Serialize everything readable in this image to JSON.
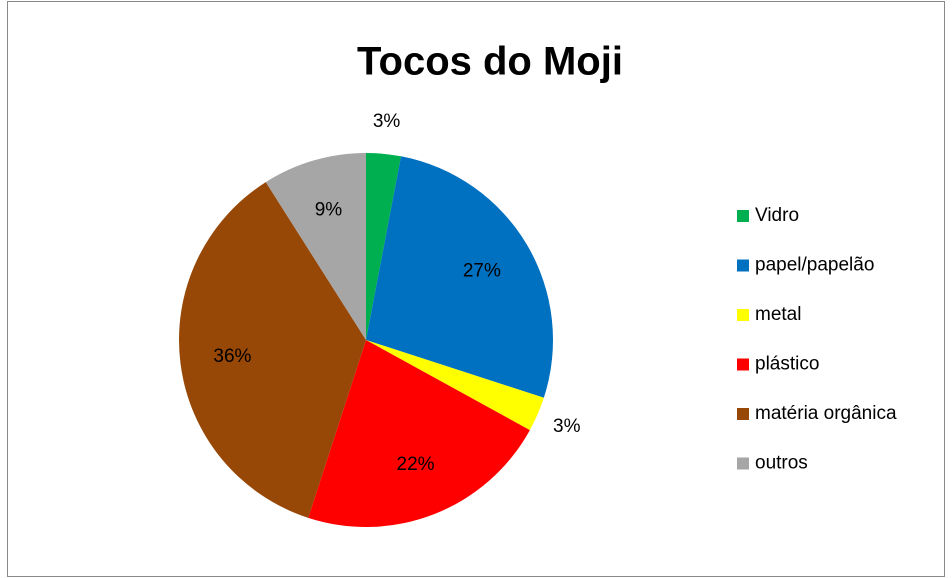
{
  "chart_data": {
    "type": "pie",
    "title": "Tocos do Moji",
    "categories": [
      "Vidro",
      "papel/papelão",
      "metal",
      "plástico",
      "matéria orgânica",
      "outros"
    ],
    "values": [
      3,
      27,
      3,
      22,
      36,
      9
    ],
    "value_labels": [
      "3%",
      "27%",
      "3%",
      "22%",
      "36%",
      "9%"
    ],
    "colors": [
      "#00b050",
      "#0070c0",
      "#ffff00",
      "#ff0000",
      "#974706",
      "#a6a6a6"
    ],
    "legend": "right"
  }
}
